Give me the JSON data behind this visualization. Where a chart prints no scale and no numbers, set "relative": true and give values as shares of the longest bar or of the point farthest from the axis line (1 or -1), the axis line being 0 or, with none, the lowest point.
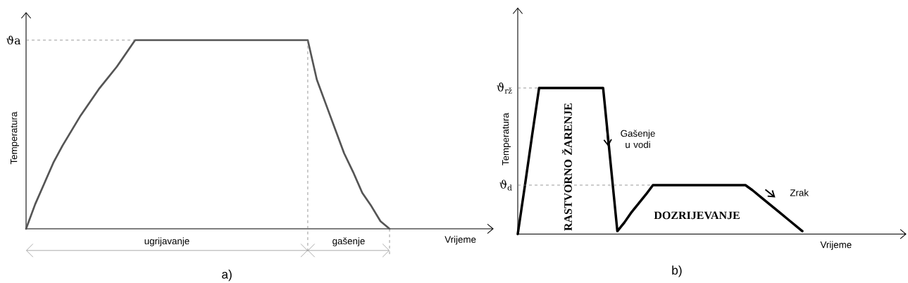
{
  "chart_data": [
    {
      "type": "line",
      "relative": true,
      "title": "a)",
      "xlabel": "Vrijeme",
      "ylabel": "Temperatura",
      "categories": [
        null,
        null,
        null,
        null,
        null,
        null,
        null,
        null,
        null,
        null,
        null,
        null,
        null,
        null,
        null,
        null,
        null,
        null,
        null,
        null,
        null,
        null,
        null,
        null,
        null,
        null,
        null,
        null,
        null,
        null,
        null,
        null,
        null,
        null,
        null,
        null,
        null,
        null,
        null,
        null,
        null
      ],
      "series": [
        {
          "color": "#555555",
          "values": [
            0,
            0.13,
            0.24,
            0.35,
            0.44,
            0.52,
            0.6,
            0.67,
            0.74,
            0.8,
            0.86,
            0.93,
            1,
            1,
            1,
            1,
            1,
            1,
            1,
            1,
            1,
            1,
            1,
            1,
            1,
            1,
            1,
            1,
            1,
            1,
            1,
            1,
            0.79,
            0.66,
            0.53,
            0.4,
            0.3,
            0.19,
            0.12,
            0.04,
            0
          ]
        }
      ],
      "ref_lines": [
        {
          "axis": "y",
          "value": 1,
          "label": "ϑa",
          "line_style": "dashed"
        }
      ],
      "annotations": [
        "ugrijavanje",
        "gašenje"
      ]
    },
    {
      "type": "line",
      "relative": true,
      "title": "b)",
      "xlabel": "Vrijeme",
      "ylabel": "Temperatura",
      "categories": [
        null,
        null,
        null,
        null,
        null,
        null,
        null,
        null,
        null,
        null,
        null,
        null,
        null,
        null,
        null,
        null,
        null,
        null,
        null,
        null,
        null,
        null,
        null,
        null,
        null,
        null,
        null,
        null,
        null,
        null,
        null,
        null,
        null,
        null,
        null,
        null,
        null,
        null,
        null,
        null,
        null
      ],
      "series": [
        {
          "color": "#000000",
          "values": [
            0,
            0.33,
            0.67,
            1,
            1,
            1,
            1,
            1,
            1,
            1,
            1,
            1,
            1,
            0.51,
            0.02,
            0.08,
            0.15,
            0.21,
            0.27,
            0.335,
            0.335,
            0.335,
            0.335,
            0.335,
            0.335,
            0.335,
            0.335,
            0.335,
            0.335,
            0.335,
            0.335,
            0.335,
            0.335,
            0.3,
            0.26,
            0.22,
            0.18,
            0.14,
            0.1,
            0.06,
            0.02
          ]
        }
      ],
      "ref_lines": [
        {
          "axis": "y",
          "value": 1,
          "label": "ϑ$_{rž}$",
          "line_style": "dashed"
        },
        {
          "axis": "y",
          "value": 0.335,
          "label": "ϑ$_{d}$",
          "line_style": "dashed"
        }
      ],
      "annotations": [
        "RASTVORNO ŽARENJE",
        "Gašenje u vodi",
        "DOZRIJEVANJE",
        "Zrak"
      ]
    }
  ]
}
